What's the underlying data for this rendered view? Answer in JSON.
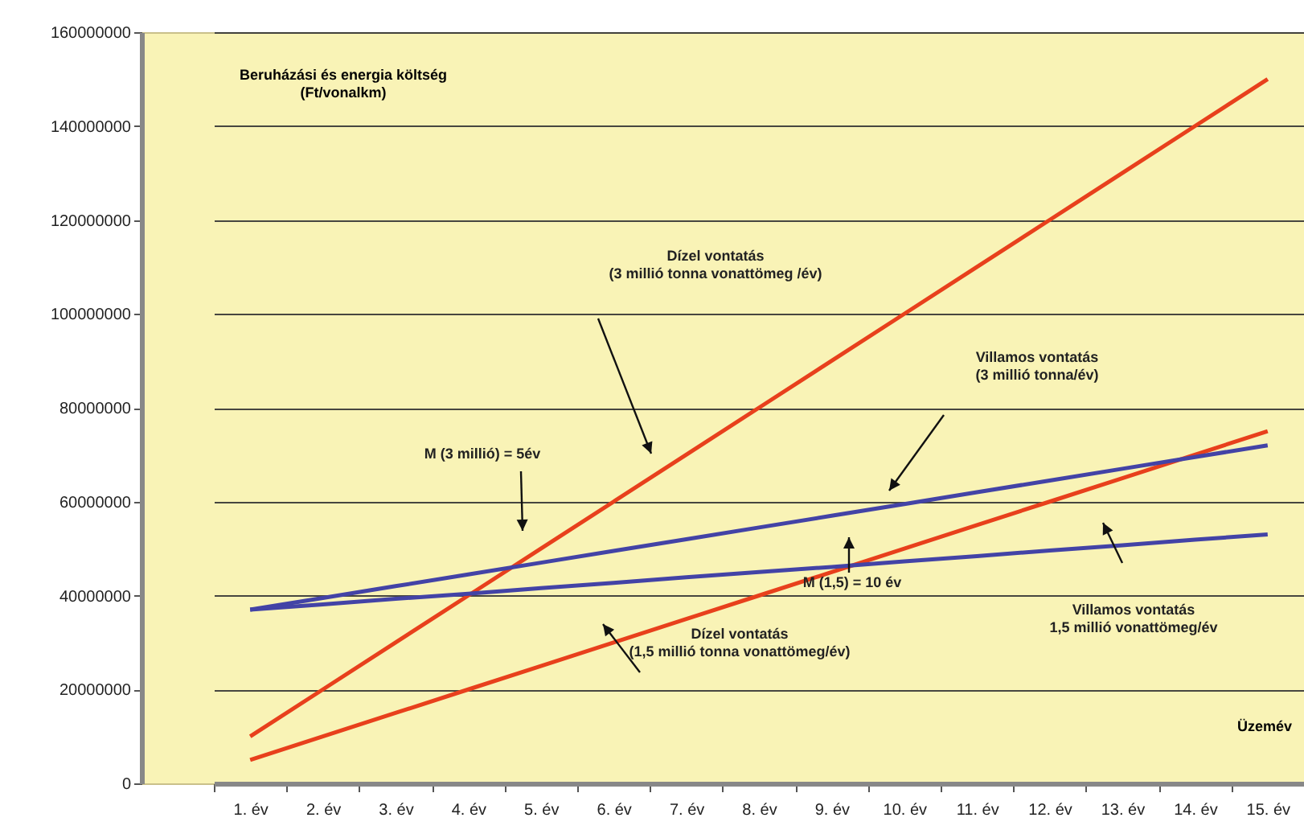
{
  "chart_data": {
    "type": "line",
    "xlabel": "Üzemév",
    "ylabel": "Beruházási és energia költség\n(Ft/vonalkm)",
    "categories": [
      "1. év",
      "2. év",
      "3. év",
      "4. év",
      "5. év",
      "6. év",
      "7. év",
      "8. év",
      "9. év",
      "10. év",
      "11. év",
      "12. év",
      "13. év",
      "14. év",
      "15. év"
    ],
    "series": [
      {
        "color": "#e8401c",
        "values": [
          10000000,
          20000000,
          30000000,
          40000000,
          50000000,
          60000000,
          70000000,
          80000000,
          90000000,
          100000000,
          110000000,
          120000000,
          130000000,
          140000000,
          150000000
        ]
      },
      {
        "color": "#e8401c",
        "values": [
          5000000,
          10000000,
          15000000,
          20000000,
          25000000,
          30000000,
          35000000,
          40000000,
          45000000,
          50000000,
          55000000,
          60000000,
          65000000,
          70000000,
          75000000
        ]
      },
      {
        "color": "#4343a6",
        "values": [
          37000000,
          39500000,
          42000000,
          44500000,
          47000000,
          49500000,
          52000000,
          54500000,
          57000000,
          59500000,
          62000000,
          64500000,
          67000000,
          69500000,
          72000000
        ]
      },
      {
        "color": "#4343a6",
        "values": [
          37000000,
          38100000,
          39300000,
          40400000,
          41600000,
          42700000,
          43900000,
          45000000,
          46100000,
          47300000,
          48400000,
          49600000,
          50700000,
          51900000,
          53000000
        ]
      }
    ],
    "ylim": [
      0,
      160000000
    ],
    "yticks": [
      0,
      20000000,
      40000000,
      60000000,
      80000000,
      100000000,
      120000000,
      140000000,
      160000000
    ],
    "grid": "y",
    "marker": "none",
    "line_style": "solid",
    "annotations": [
      "Dízel vontatás\n(3 millió tonna vonattömeg /év)",
      "Villamos vontatás\n(3 millió tonna/év)",
      "M (3 millió) = 5év",
      "M (1,5) = 10 év",
      "Villamos vontatás\n1,5 millió vonattömeg/év",
      "Dízel vontatás\n(1,5 millió tonna vonattömeg/év)"
    ]
  }
}
